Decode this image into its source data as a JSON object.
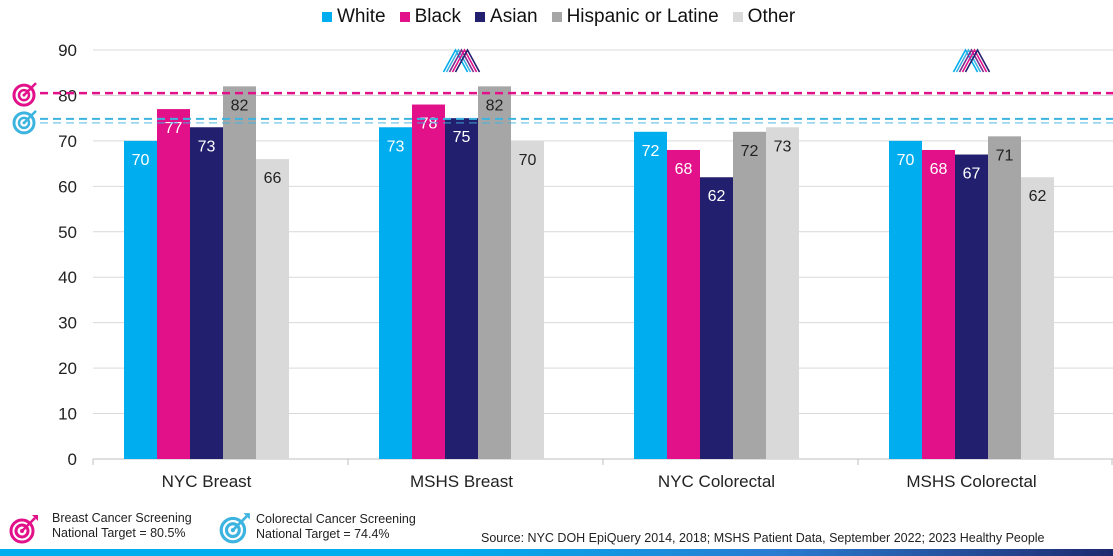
{
  "legend": [
    {
      "label": "White",
      "color": "#00aeef"
    },
    {
      "label": "Black",
      "color": "#e2118a"
    },
    {
      "label": "Asian",
      "color": "#221f6e"
    },
    {
      "label": "Hispanic or Latine",
      "color": "#a6a6a6"
    },
    {
      "label": "Other",
      "color": "#d9d9d9"
    }
  ],
  "chart_data": {
    "type": "bar",
    "categories": [
      "NYC Breast",
      "MSHS Breast",
      "NYC Colorectal",
      "MSHS Colorectal"
    ],
    "series": [
      {
        "name": "White",
        "color": "#00aeef",
        "values": [
          70,
          73,
          72,
          70
        ],
        "label_color": "#ffffff"
      },
      {
        "name": "Black",
        "color": "#e2118a",
        "values": [
          77,
          78,
          68,
          68
        ],
        "label_color": "#ffffff"
      },
      {
        "name": "Asian",
        "color": "#221f6e",
        "values": [
          73,
          75,
          62,
          67
        ],
        "label_color": "#ffffff"
      },
      {
        "name": "Hispanic or Latine",
        "color": "#a6a6a6",
        "values": [
          82,
          82,
          72,
          71
        ],
        "label_color": "#222222"
      },
      {
        "name": "Other",
        "color": "#d9d9d9",
        "values": [
          66,
          70,
          73,
          62
        ],
        "label_color": "#222222"
      }
    ],
    "ylim": [
      0,
      90
    ],
    "yticks": [
      0,
      10,
      20,
      30,
      40,
      50,
      60,
      70,
      80,
      90
    ],
    "grid": true,
    "legend_position": "top",
    "targets": [
      {
        "value": 80.5,
        "color": "#e2118a"
      },
      {
        "value": 74.4,
        "color": "#3db4e0"
      }
    ],
    "logo_above_categories": [
      "MSHS Breast",
      "MSHS Colorectal"
    ]
  },
  "footer": {
    "breast_target_line1": "Breast Cancer Screening",
    "breast_target_line2": "National Target = 80.5%",
    "colorectal_target_line1": "Colorectal Cancer Screening",
    "colorectal_target_line2": "National Target = 74.4%",
    "source": "Source: NYC DOH EpiQuery 2014, 2018; MSHS Patient Data, September 2022; 2023 Healthy People"
  },
  "icons": {
    "breast_target": "target-icon",
    "colorectal_target": "target-icon",
    "msk_logo": "mount-sinai-logo-icon"
  }
}
